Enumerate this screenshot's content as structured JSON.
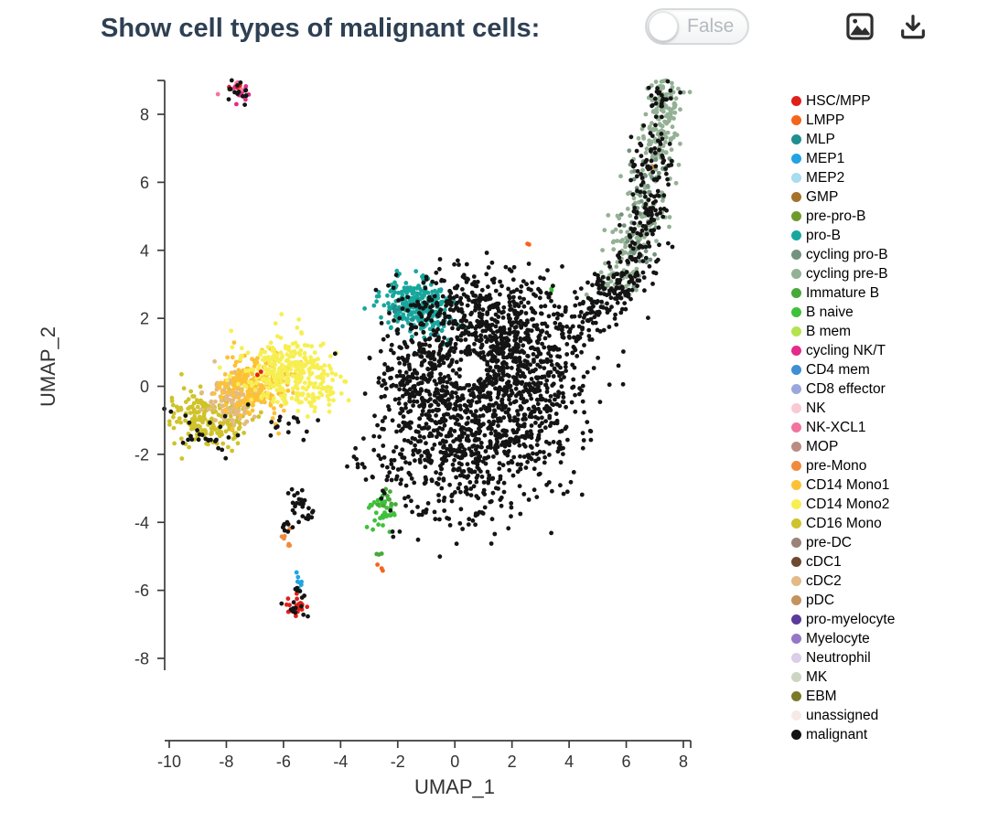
{
  "header": {
    "title": "Show cell types of malignant cells:",
    "toggle": {
      "label": "False",
      "state": "off"
    }
  },
  "toolbar": {
    "snapshot_icon": "image-icon",
    "download_icon": "download-icon"
  },
  "chart_data": {
    "type": "scatter",
    "title": "",
    "xlabel": "UMAP_1",
    "ylabel": "UMAP_2",
    "xlim": [
      -10.2,
      8.4
    ],
    "ylim": [
      -10.4,
      9.0
    ],
    "x_ticks": [
      -10,
      -8,
      -6,
      -4,
      -2,
      0,
      2,
      4,
      6,
      8
    ],
    "y_ticks": [
      8,
      6,
      4,
      2,
      0,
      -2,
      -4,
      -6,
      -8
    ],
    "grid": false,
    "legend_position": "right",
    "point_radius": 2.4,
    "legend": [
      {
        "name": "HSC/MPP",
        "color": "#e0201b"
      },
      {
        "name": "LMPP",
        "color": "#f4651c"
      },
      {
        "name": "MLP",
        "color": "#1f8f8f"
      },
      {
        "name": "MEP1",
        "color": "#23a3e1"
      },
      {
        "name": "MEP2",
        "color": "#a8dcef"
      },
      {
        "name": "GMP",
        "color": "#a4722b"
      },
      {
        "name": "pre-pro-B",
        "color": "#6f9a2a"
      },
      {
        "name": "pro-B",
        "color": "#18a79d"
      },
      {
        "name": "cycling pro-B",
        "color": "#74937e"
      },
      {
        "name": "cycling pre-B",
        "color": "#93b194"
      },
      {
        "name": "Immature B",
        "color": "#49a83a"
      },
      {
        "name": "B naive",
        "color": "#3fc13c"
      },
      {
        "name": "B mem",
        "color": "#b4e34f"
      },
      {
        "name": "cycling NK/T",
        "color": "#e42a8a"
      },
      {
        "name": "CD4 mem",
        "color": "#3f8fd2"
      },
      {
        "name": "CD8 effector",
        "color": "#9aa7dc"
      },
      {
        "name": "NK",
        "color": "#f9c9d4"
      },
      {
        "name": "NK-XCL1",
        "color": "#f2739f"
      },
      {
        "name": "MOP",
        "color": "#bb8b84"
      },
      {
        "name": "pre-Mono",
        "color": "#f08a3c"
      },
      {
        "name": "CD14 Mono1",
        "color": "#fdc135"
      },
      {
        "name": "CD14 Mono2",
        "color": "#f7ef52"
      },
      {
        "name": "CD16 Mono",
        "color": "#cfc32b"
      },
      {
        "name": "pre-DC",
        "color": "#9b8378"
      },
      {
        "name": "cDC1",
        "color": "#6d4930"
      },
      {
        "name": "cDC2",
        "color": "#e3ba85"
      },
      {
        "name": "pDC",
        "color": "#c3925e"
      },
      {
        "name": "pro-myelocyte",
        "color": "#5b3a9b"
      },
      {
        "name": "Myelocyte",
        "color": "#9577c9"
      },
      {
        "name": "Neutrophil",
        "color": "#dccde9"
      },
      {
        "name": "MK",
        "color": "#ccd5c2"
      },
      {
        "name": "EBM",
        "color": "#7a7a28"
      },
      {
        "name": "unassigned",
        "color": "#f7eae6"
      },
      {
        "name": "malignant",
        "color": "#141414"
      }
    ],
    "hole": {
      "center": [
        0.6,
        0.55
      ],
      "rx": 0.42,
      "ry": 0.4
    },
    "clusters": [
      {
        "cell_type": "CD16 Mono",
        "center": [
          -8.85,
          -0.85
        ],
        "sd": [
          0.6,
          0.42
        ],
        "n": 150
      },
      {
        "cell_type": "CD16 Mono",
        "center": [
          -7.95,
          -1.1
        ],
        "sd": [
          0.5,
          0.3
        ],
        "n": 55
      },
      {
        "cell_type": "cDC2",
        "center": [
          -7.75,
          -0.35
        ],
        "sd": [
          0.5,
          0.38
        ],
        "n": 110
      },
      {
        "cell_type": "CD14 Mono1",
        "center": [
          -7.0,
          0.05
        ],
        "sd": [
          0.62,
          0.48
        ],
        "n": 210
      },
      {
        "cell_type": "CD14 Mono2",
        "center": [
          -5.95,
          0.45
        ],
        "sd": [
          0.72,
          0.5
        ],
        "n": 270
      },
      {
        "cell_type": "CD14 Mono2",
        "center": [
          -5.0,
          0.05
        ],
        "sd": [
          0.45,
          0.4
        ],
        "n": 55
      },
      {
        "cell_type": "CD14 Mono2",
        "box": [
          -4.6,
          -0.5,
          -3.5,
          0.5
        ],
        "n": 8
      },
      {
        "cell_type": "HSC/MPP",
        "center": [
          -6.75,
          0.45
        ],
        "sd": [
          0.07,
          0.07
        ],
        "n": 2
      },
      {
        "cell_type": "NK-XCL1",
        "center": [
          -7.65,
          8.75
        ],
        "sd": [
          0.22,
          0.17
        ],
        "n": 13
      },
      {
        "cell_type": "cycling NK/T",
        "center": [
          -7.45,
          8.6
        ],
        "sd": [
          0.18,
          0.14
        ],
        "n": 7
      },
      {
        "cell_type": "HSC/MPP",
        "center": [
          -7.75,
          8.85
        ],
        "sd": [
          0.12,
          0.09
        ],
        "n": 3
      },
      {
        "cell_type": "pro-B",
        "center": [
          -1.45,
          2.45
        ],
        "sd": [
          0.55,
          0.42
        ],
        "n": 210
      },
      {
        "cell_type": "pro-B",
        "center": [
          -0.55,
          1.85
        ],
        "sd": [
          0.38,
          0.34
        ],
        "n": 40
      },
      {
        "cell_type": "MLP",
        "center": [
          -1.95,
          2.15
        ],
        "sd": [
          0.28,
          0.22
        ],
        "n": 9
      },
      {
        "cell_type": "cycling pre-B",
        "path": [
          [
            5.6,
            2.8
          ],
          [
            7.0,
            6.2
          ]
        ],
        "sd": [
          0.42,
          0.36
        ],
        "n": 150
      },
      {
        "cell_type": "cycling pre-B",
        "path": [
          [
            7.0,
            6.4
          ],
          [
            7.35,
            8.3
          ]
        ],
        "sd": [
          0.3,
          0.3
        ],
        "n": 110
      },
      {
        "cell_type": "cycling pre-B",
        "center": [
          7.3,
          8.55
        ],
        "sd": [
          0.3,
          0.26
        ],
        "n": 45
      },
      {
        "cell_type": "cycling pro-B",
        "path": [
          [
            6.0,
            3.2
          ],
          [
            7.1,
            6.8
          ]
        ],
        "sd": [
          0.36,
          0.3
        ],
        "n": 55
      },
      {
        "cell_type": "pre-Mono",
        "center": [
          6.9,
          6.5
        ],
        "sd": [
          0.06,
          0.06
        ],
        "n": 2
      },
      {
        "cell_type": "B naive",
        "center": [
          3.4,
          2.9
        ],
        "sd": [
          0.06,
          0.06
        ],
        "n": 2
      },
      {
        "cell_type": "LMPP",
        "center": [
          2.6,
          4.2
        ],
        "sd": [
          0.06,
          0.06
        ],
        "n": 2
      },
      {
        "cell_type": "B naive",
        "center": [
          -2.55,
          -3.6
        ],
        "sd": [
          0.22,
          0.3
        ],
        "n": 34
      },
      {
        "cell_type": "Immature B",
        "center": [
          -2.4,
          -3.35
        ],
        "sd": [
          0.18,
          0.2
        ],
        "n": 8
      },
      {
        "cell_type": "Immature B",
        "center": [
          -2.65,
          -4.9
        ],
        "sd": [
          0.07,
          0.07
        ],
        "n": 3
      },
      {
        "cell_type": "LMPP",
        "center": [
          -2.6,
          -5.35
        ],
        "sd": [
          0.06,
          0.09
        ],
        "n": 3
      },
      {
        "cell_type": "pre-Mono",
        "center": [
          -5.85,
          -4.55
        ],
        "sd": [
          0.09,
          0.16
        ],
        "n": 7
      },
      {
        "cell_type": "MEP1",
        "center": [
          -5.45,
          -5.75
        ],
        "sd": [
          0.13,
          0.13
        ],
        "n": 7
      },
      {
        "cell_type": "HSC/MPP",
        "center": [
          -5.5,
          -6.45
        ],
        "sd": [
          0.16,
          0.13
        ],
        "n": 24
      },
      {
        "cell_type": "malignant",
        "center": [
          1.3,
          0.9
        ],
        "sd": [
          1.5,
          1.05
        ],
        "n": 850
      },
      {
        "cell_type": "malignant",
        "center": [
          0.2,
          -1.6
        ],
        "sd": [
          1.25,
          0.8
        ],
        "n": 420
      },
      {
        "cell_type": "malignant",
        "center": [
          -1.2,
          0.2
        ],
        "sd": [
          0.7,
          0.85
        ],
        "n": 170
      },
      {
        "cell_type": "malignant",
        "center": [
          2.9,
          -0.9
        ],
        "sd": [
          0.9,
          0.8
        ],
        "n": 200
      },
      {
        "cell_type": "malignant",
        "center": [
          0.6,
          2.6
        ],
        "sd": [
          1.1,
          0.5
        ],
        "n": 130
      },
      {
        "cell_type": "malignant",
        "box": [
          -2.6,
          -3.3,
          3.8,
          3.6
        ],
        "n": 150
      },
      {
        "cell_type": "malignant",
        "center": [
          0.6,
          -3.55
        ],
        "sd": [
          1.1,
          0.5
        ],
        "n": 55
      },
      {
        "cell_type": "malignant",
        "box": [
          -3.9,
          -3.0,
          -2.2,
          -1.6
        ],
        "n": 16
      },
      {
        "cell_type": "malignant",
        "path": [
          [
            4.2,
            1.6
          ],
          [
            6.3,
            3.4
          ]
        ],
        "sd": [
          0.45,
          0.4
        ],
        "n": 170
      },
      {
        "cell_type": "malignant",
        "path": [
          [
            6.3,
            3.6
          ],
          [
            7.1,
            7.2
          ]
        ],
        "sd": [
          0.38,
          0.34
        ],
        "n": 150
      },
      {
        "cell_type": "malignant",
        "center": [
          7.3,
          8.5
        ],
        "sd": [
          0.28,
          0.24
        ],
        "n": 25
      },
      {
        "cell_type": "malignant",
        "center": [
          -8.75,
          -1.4
        ],
        "sd": [
          0.65,
          0.32
        ],
        "n": 26
      },
      {
        "cell_type": "malignant",
        "center": [
          -6.1,
          -1.05
        ],
        "sd": [
          0.6,
          0.3
        ],
        "n": 15
      },
      {
        "cell_type": "malignant",
        "center": [
          -7.55,
          8.68
        ],
        "sd": [
          0.26,
          0.2
        ],
        "n": 16
      },
      {
        "cell_type": "malignant",
        "center": [
          -5.45,
          -3.35
        ],
        "sd": [
          0.2,
          0.17
        ],
        "n": 22
      },
      {
        "cell_type": "malignant",
        "center": [
          -5.05,
          -3.85
        ],
        "sd": [
          0.12,
          0.12
        ],
        "n": 6
      },
      {
        "cell_type": "malignant",
        "center": [
          -5.9,
          -4.15
        ],
        "sd": [
          0.1,
          0.12
        ],
        "n": 8
      },
      {
        "cell_type": "malignant",
        "center": [
          -5.5,
          -6.0
        ],
        "sd": [
          0.12,
          0.09
        ],
        "n": 5
      },
      {
        "cell_type": "malignant",
        "center": [
          -5.55,
          -6.5
        ],
        "sd": [
          0.3,
          0.22
        ],
        "n": 12
      },
      {
        "cell_type": "malignant",
        "box": [
          -2.3,
          -4.6,
          -0.6,
          -3.2
        ],
        "n": 12
      }
    ]
  }
}
